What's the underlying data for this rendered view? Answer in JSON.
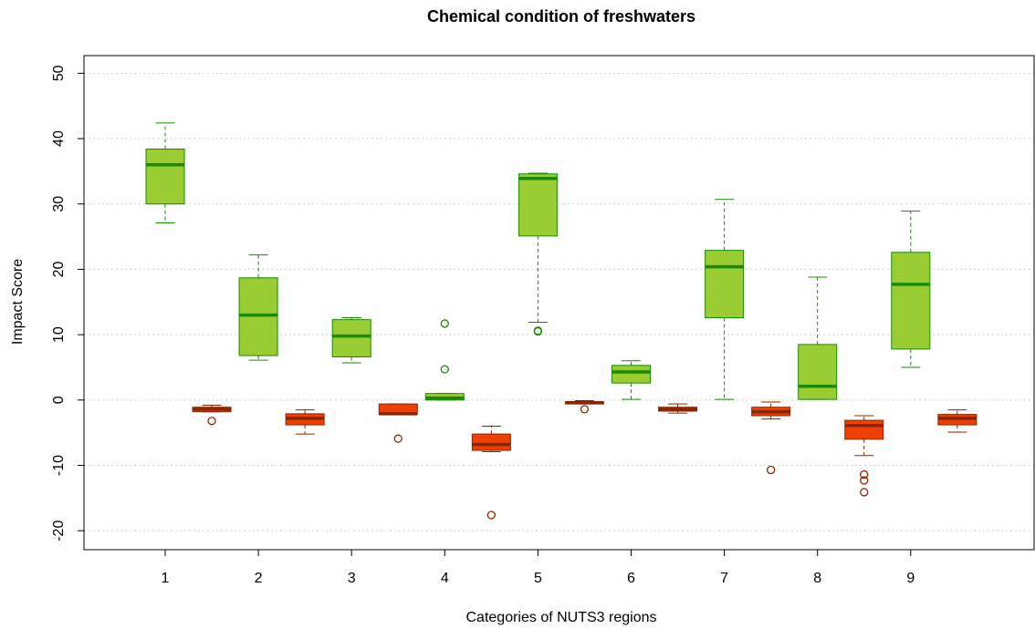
{
  "chart_data": {
    "type": "boxplot",
    "title": "Chemical condition of freshwaters",
    "x_label": "Categories of NUTS3 regions",
    "y_label": "Impact Score",
    "categories": [
      "1",
      "2",
      "3",
      "4",
      "5",
      "6",
      "7",
      "8",
      "9"
    ],
    "ylim": [
      -22.9,
      52.7
    ],
    "yticks": [
      -20,
      -10,
      0,
      10,
      20,
      30,
      40,
      50
    ],
    "grid": true,
    "series": [
      {
        "color": "#9acd32",
        "edge_color": "#1a8a00",
        "boxes": [
          {
            "min": 27.1,
            "q1": 30.0,
            "median": 36.0,
            "q3": 38.4,
            "max": 42.4,
            "outliers": []
          },
          {
            "min": 6.1,
            "q1": 6.8,
            "median": 13.0,
            "q3": 18.7,
            "max": 22.2,
            "outliers": []
          },
          {
            "min": 5.7,
            "q1": 6.6,
            "median": 9.8,
            "q3": 12.3,
            "max": 12.6,
            "outliers": []
          },
          {
            "min": 0,
            "q1": 0,
            "median": 0.3,
            "q3": 1.0,
            "max": 1.0,
            "outliers": [
              11.7,
              4.7
            ]
          },
          {
            "min": 11.9,
            "q1": 25.1,
            "median": 33.9,
            "q3": 34.6,
            "max": 34.7,
            "outliers": [
              10.6,
              10.5
            ]
          },
          {
            "min": 0.1,
            "q1": 2.6,
            "median": 4.3,
            "q3": 5.3,
            "max": 6.0,
            "outliers": []
          },
          {
            "min": 0.1,
            "q1": 12.6,
            "median": 20.4,
            "q3": 22.9,
            "max": 30.7,
            "outliers": []
          },
          {
            "min": 0.1,
            "q1": 0.1,
            "median": 2.1,
            "q3": 8.5,
            "max": 18.8,
            "outliers": []
          },
          {
            "min": 5.0,
            "q1": 7.8,
            "median": 17.7,
            "q3": 22.6,
            "max": 28.9,
            "outliers": []
          }
        ]
      },
      {
        "color": "#ee4000",
        "edge_color": "#8b2500",
        "boxes": [
          {
            "min": -1.8,
            "q1": -1.8,
            "median": -1.4,
            "q3": -1.1,
            "max": -0.8,
            "outliers": [
              -3.2
            ]
          },
          {
            "min": -5.2,
            "q1": -3.8,
            "median": -2.8,
            "q3": -2.1,
            "max": -1.5,
            "outliers": []
          },
          {
            "min": -2.2,
            "q1": -2.2,
            "median": -2.1,
            "q3": -0.6,
            "max": -0.6,
            "outliers": [
              -5.9
            ]
          },
          {
            "min": -7.9,
            "q1": -7.7,
            "median": -6.8,
            "q3": -5.2,
            "max": -4.0,
            "outliers": [
              -17.6
            ]
          },
          {
            "min": -0.6,
            "q1": -0.6,
            "median": -0.4,
            "q3": -0.3,
            "max": -0.1,
            "outliers": [
              -1.4
            ]
          },
          {
            "min": -2.0,
            "q1": -1.7,
            "median": -1.4,
            "q3": -1.1,
            "max": -0.6,
            "outliers": []
          },
          {
            "min": -2.9,
            "q1": -2.4,
            "median": -1.8,
            "q3": -1.1,
            "max": -0.3,
            "outliers": [
              -10.7
            ]
          },
          {
            "min": -8.5,
            "q1": -6.0,
            "median": -3.9,
            "q3": -3.1,
            "max": -2.4,
            "outliers": [
              -11.4,
              -12.3,
              -14.1
            ]
          },
          {
            "min": -4.9,
            "q1": -3.8,
            "median": -2.8,
            "q3": -2.2,
            "max": -1.5,
            "outliers": []
          }
        ]
      }
    ]
  }
}
